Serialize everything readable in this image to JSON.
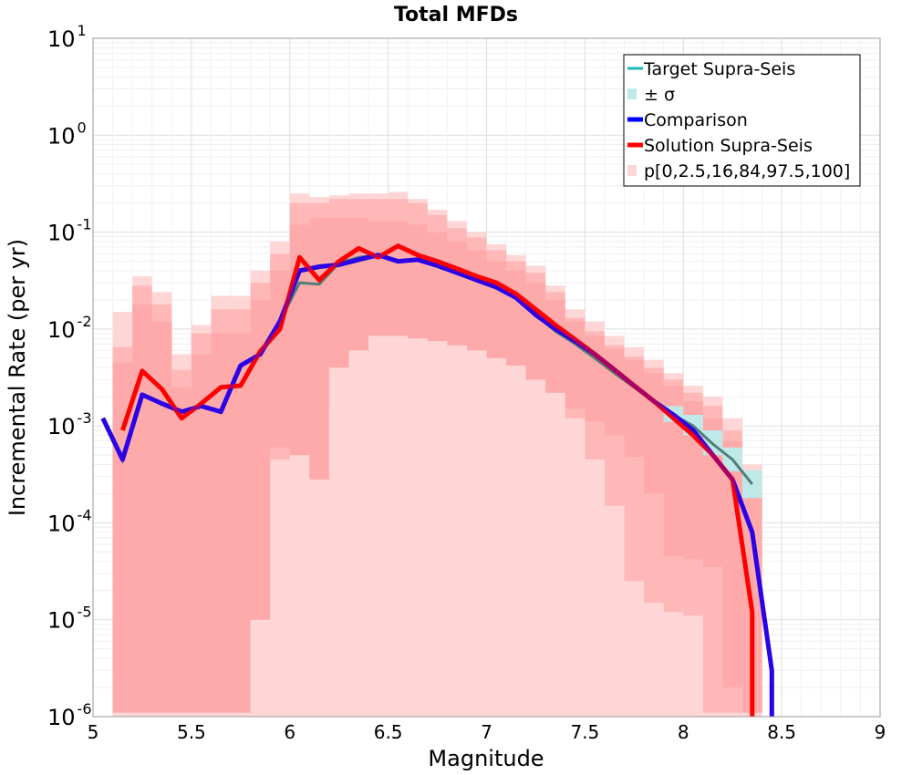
{
  "chart_data": {
    "type": "line",
    "title": "Total MFDs",
    "xlabel": "Magnitude",
    "ylabel": "Incremental Rate (per yr)",
    "xlim": [
      5,
      9
    ],
    "ylim": [
      1e-06,
      10
    ],
    "yscale": "log",
    "xticks": [
      "5",
      "5.5",
      "6",
      "6.5",
      "7",
      "7.5",
      "8",
      "8.5",
      "9"
    ],
    "yticks": [
      {
        "base": "10",
        "exp": "-6"
      },
      {
        "base": "10",
        "exp": "-5"
      },
      {
        "base": "10",
        "exp": "-4"
      },
      {
        "base": "10",
        "exp": "-3"
      },
      {
        "base": "10",
        "exp": "-2"
      },
      {
        "base": "10",
        "exp": "-1"
      },
      {
        "base": "10",
        "exp": "0"
      },
      {
        "base": "10",
        "exp": "1"
      }
    ],
    "grid": true,
    "legend_position": "top-right",
    "legend": [
      {
        "label": "Target Supra-Seis",
        "kind": "line",
        "color": "#1fb5b5"
      },
      {
        "label": "± σ",
        "kind": "band",
        "color": "#bfe8e8"
      },
      {
        "label": "Comparison",
        "kind": "line",
        "color": "#0000ff"
      },
      {
        "label": "Solution Supra-Seis",
        "kind": "line",
        "color": "#ff0000"
      },
      {
        "label": "p[0,2.5,16,84,97.5,100]",
        "kind": "band",
        "color": "#ffd6d6"
      }
    ],
    "series": [
      {
        "name": "Target Supra-Seis",
        "color": "#1fb5b5",
        "x": [
          5.15,
          5.25,
          5.35,
          5.45,
          5.55,
          5.65,
          5.75,
          5.85,
          5.95,
          6.05,
          6.15,
          6.25,
          6.35,
          6.45,
          6.55,
          6.65,
          6.75,
          6.85,
          6.95,
          7.05,
          7.15,
          7.25,
          7.35,
          7.45,
          7.55,
          7.65,
          7.75,
          7.85,
          7.95,
          8.05,
          8.15,
          8.25,
          8.35
        ],
        "y": [
          0.00045,
          0.0021,
          0.0017,
          0.0014,
          0.0016,
          0.0014,
          0.0042,
          0.0055,
          0.012,
          0.03,
          0.029,
          0.048,
          0.055,
          0.058,
          0.05,
          0.052,
          0.045,
          0.038,
          0.032,
          0.027,
          0.021,
          0.014,
          0.0095,
          0.007,
          0.005,
          0.0035,
          0.0025,
          0.0018,
          0.0013,
          0.001,
          0.00065,
          0.00045,
          0.00025
        ]
      },
      {
        "name": "Comparison",
        "color": "#0000ff",
        "x": [
          5.05,
          5.15,
          5.25,
          5.35,
          5.45,
          5.55,
          5.65,
          5.75,
          5.85,
          5.95,
          6.05,
          6.15,
          6.25,
          6.35,
          6.45,
          6.55,
          6.65,
          6.75,
          6.85,
          6.95,
          7.05,
          7.15,
          7.25,
          7.35,
          7.45,
          7.55,
          7.65,
          7.75,
          7.85,
          7.95,
          8.05,
          8.15,
          8.25,
          8.35,
          8.45,
          8.45
        ],
        "y": [
          0.0012,
          0.00045,
          0.0021,
          0.0017,
          0.0014,
          0.0016,
          0.0014,
          0.0042,
          0.0055,
          0.012,
          0.04,
          0.044,
          0.046,
          0.052,
          0.058,
          0.05,
          0.052,
          0.045,
          0.038,
          0.032,
          0.027,
          0.021,
          0.014,
          0.01,
          0.0075,
          0.0055,
          0.0038,
          0.0026,
          0.0018,
          0.0013,
          0.0009,
          0.0005,
          0.00028,
          8e-05,
          3e-06,
          9e-07
        ]
      },
      {
        "name": "Solution Supra-Seis",
        "color": "#ff0000",
        "x": [
          5.15,
          5.25,
          5.35,
          5.45,
          5.55,
          5.65,
          5.75,
          5.85,
          5.95,
          6.05,
          6.15,
          6.25,
          6.35,
          6.45,
          6.55,
          6.65,
          6.75,
          6.85,
          6.95,
          7.05,
          7.15,
          7.25,
          7.35,
          7.45,
          7.55,
          7.65,
          7.75,
          7.85,
          7.95,
          8.05,
          8.15,
          8.25,
          8.35,
          8.35
        ],
        "y": [
          0.0009,
          0.0037,
          0.0024,
          0.0012,
          0.0017,
          0.0025,
          0.0026,
          0.0059,
          0.01,
          0.055,
          0.032,
          0.05,
          0.068,
          0.055,
          0.072,
          0.058,
          0.05,
          0.042,
          0.035,
          0.03,
          0.023,
          0.016,
          0.011,
          0.0078,
          0.0055,
          0.0038,
          0.0026,
          0.0018,
          0.0012,
          0.0008,
          0.0005,
          0.00028,
          1.2e-05,
          9e-07
        ]
      }
    ],
    "bands": [
      {
        "name": "p0-p100",
        "color": "#ffd6d6",
        "x": [
          5.15,
          5.25,
          5.35,
          5.45,
          5.55,
          5.65,
          5.75,
          5.85,
          5.95,
          6.05,
          6.15,
          6.25,
          6.35,
          6.45,
          6.55,
          6.65,
          6.75,
          6.85,
          6.95,
          7.05,
          7.15,
          7.25,
          7.35,
          7.45,
          7.55,
          7.65,
          7.75,
          7.85,
          7.95,
          8.05,
          8.15,
          8.25,
          8.35
        ],
        "lo": [
          1e-06,
          1e-06,
          1e-06,
          1e-06,
          1e-06,
          1e-06,
          1e-06,
          1e-06,
          1e-06,
          1e-06,
          1e-06,
          1e-06,
          1e-06,
          1e-06,
          1e-06,
          1e-06,
          1e-06,
          1e-06,
          1e-06,
          1e-06,
          1e-06,
          1e-06,
          1e-06,
          1e-06,
          1e-06,
          1e-06,
          1e-06,
          1e-06,
          1e-06,
          1e-06,
          1e-06,
          1e-06,
          1e-06
        ],
        "hi": [
          0.015,
          0.035,
          0.024,
          0.0055,
          0.011,
          0.022,
          0.022,
          0.04,
          0.08,
          0.25,
          0.23,
          0.24,
          0.25,
          0.25,
          0.26,
          0.22,
          0.17,
          0.13,
          0.1,
          0.075,
          0.058,
          0.045,
          0.028,
          0.016,
          0.012,
          0.0085,
          0.0065,
          0.0048,
          0.0035,
          0.0026,
          0.002,
          0.0012,
          0.0004
        ]
      },
      {
        "name": "p2.5-p97.5",
        "color": "#ffb8b8",
        "x": [
          5.15,
          5.25,
          5.35,
          5.45,
          5.55,
          5.65,
          5.75,
          5.85,
          5.95,
          6.05,
          6.15,
          6.25,
          6.35,
          6.45,
          6.55,
          6.65,
          6.75,
          6.85,
          6.95,
          7.05,
          7.15,
          7.25,
          7.35,
          7.45,
          7.55,
          7.65,
          7.75,
          7.85,
          7.95,
          8.05,
          8.15,
          8.25,
          8.35
        ],
        "lo": [
          2.5e-06,
          8e-06,
          1e-05,
          5e-05,
          2e-05,
          1.8e-05,
          2.5e-05,
          0.00018,
          0.00045,
          0.0055,
          0.0015,
          0.0048,
          0.009,
          0.011,
          0.011,
          0.011,
          0.01,
          0.0095,
          0.0085,
          0.0075,
          0.0055,
          0.0035,
          0.0022,
          0.0012,
          0.00045,
          0.00015,
          2.5e-05,
          1.5e-05,
          1.2e-05,
          1.1e-05,
          1.1e-06,
          1.1e-06,
          1.1e-06
        ],
        "hi": [
          0.0065,
          0.028,
          0.018,
          0.0038,
          0.009,
          0.016,
          0.016,
          0.03,
          0.06,
          0.2,
          0.2,
          0.22,
          0.22,
          0.22,
          0.22,
          0.2,
          0.15,
          0.11,
          0.088,
          0.065,
          0.05,
          0.038,
          0.024,
          0.013,
          0.0095,
          0.0068,
          0.0052,
          0.004,
          0.003,
          0.0022,
          0.0016,
          0.0009,
          0.0003
        ]
      },
      {
        "name": "p16-p84",
        "color": "#ffaaaa",
        "x": [
          5.15,
          5.25,
          5.35,
          5.45,
          5.55,
          5.65,
          5.75,
          5.85,
          5.95,
          6.05,
          6.15,
          6.25,
          6.35,
          6.45,
          6.55,
          6.65,
          6.75,
          6.85,
          6.95,
          7.05,
          7.15,
          7.25,
          7.35,
          7.45,
          7.55,
          7.65,
          7.75,
          7.85,
          7.95,
          8.05,
          8.15,
          8.25,
          8.35
        ],
        "lo": [
          1.1e-06,
          1.1e-06,
          1.1e-06,
          1.1e-06,
          1.1e-06,
          1.1e-06,
          1.1e-06,
          1e-05,
          0.0006,
          0.0005,
          0.00028,
          0.004,
          0.006,
          0.0085,
          0.0085,
          0.008,
          0.0075,
          0.0068,
          0.006,
          0.005,
          0.0042,
          0.003,
          0.0022,
          0.0015,
          0.0011,
          0.0008,
          0.00048,
          0.0002,
          4.5e-05,
          4.2e-05,
          3.5e-05,
          2e-06,
          1.1e-06
        ],
        "hi": [
          0.0045,
          0.018,
          0.012,
          0.0025,
          0.0055,
          0.009,
          0.009,
          0.02,
          0.04,
          0.12,
          0.14,
          0.14,
          0.14,
          0.13,
          0.13,
          0.12,
          0.1,
          0.08,
          0.065,
          0.05,
          0.04,
          0.03,
          0.02,
          0.012,
          0.0085,
          0.0062,
          0.0048,
          0.0035,
          0.0026,
          0.0018,
          0.0012,
          0.0007,
          0.00024
        ]
      },
      {
        "name": "± σ",
        "color": "#bfe8e8",
        "x": [
          7.95,
          8.05,
          8.15,
          8.25,
          8.35
        ],
        "lo": [
          0.0011,
          0.0008,
          0.0005,
          0.00034,
          0.00018
        ],
        "hi": [
          0.0016,
          0.0013,
          0.0009,
          0.0006,
          0.00035
        ]
      }
    ]
  }
}
